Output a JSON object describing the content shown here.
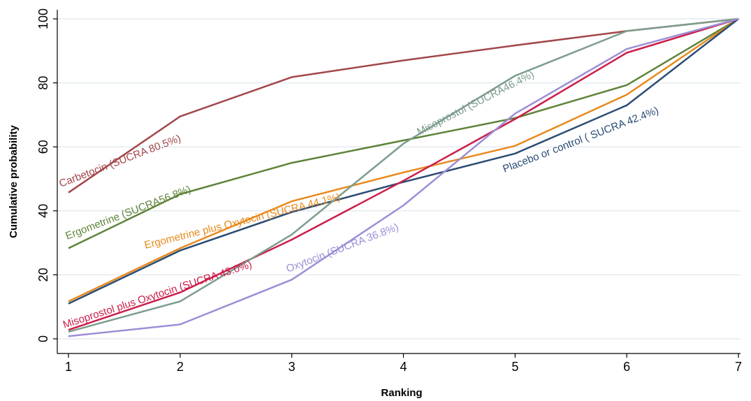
{
  "chart_data": {
    "type": "line",
    "xlabel": "Ranking",
    "ylabel": "Cumulative probability",
    "xlim": [
      1,
      7
    ],
    "ylim": [
      0,
      100
    ],
    "x_ticks": [
      1,
      2,
      3,
      4,
      5,
      6,
      7
    ],
    "y_ticks": [
      0,
      20,
      40,
      60,
      80,
      100
    ],
    "grid": true,
    "legend": "none",
    "x": [
      1,
      2,
      3,
      4,
      5,
      6,
      7
    ],
    "series": [
      {
        "name": "Carbetocin (SUCRA 80.5%)",
        "color": "#a2474a",
        "values": [
          45.7,
          69.5,
          81.8,
          87.0,
          91.7,
          96.2,
          100
        ]
      },
      {
        "name": "Ergometrine (SUCRA56.8%)",
        "color": "#5e8339",
        "values": [
          28.3,
          45.2,
          55.0,
          62.0,
          69.0,
          79.3,
          100
        ]
      },
      {
        "name": "Ergometrine plus Oxytocin (SUCRA 44.1%)",
        "color": "#e8891c",
        "values": [
          11.7,
          28.3,
          43.0,
          52.0,
          60.3,
          76.3,
          100
        ]
      },
      {
        "name": "Placebo or control ( SUCRA 42.4%)",
        "color": "#2b4c74",
        "values": [
          11.0,
          27.6,
          39.6,
          49.0,
          57.9,
          73.0,
          100
        ]
      },
      {
        "name": "Misoprostol plus Oxytocin (SUCRA 43.0%)",
        "color": "#cb1e4a",
        "values": [
          2.8,
          14.5,
          31.0,
          49.4,
          68.7,
          89.4,
          100
        ]
      },
      {
        "name": "Misoprostol (SUCRA46.4%)",
        "color": "#7d9c8d",
        "values": [
          2.2,
          11.7,
          32.6,
          61.0,
          82.2,
          96.2,
          100
        ]
      },
      {
        "name": "Oxytocin  (SUCRA 36.8%)",
        "color": "#9c8ed6",
        "values": [
          0.8,
          4.5,
          18.5,
          41.7,
          70.4,
          90.6,
          100
        ]
      }
    ]
  }
}
